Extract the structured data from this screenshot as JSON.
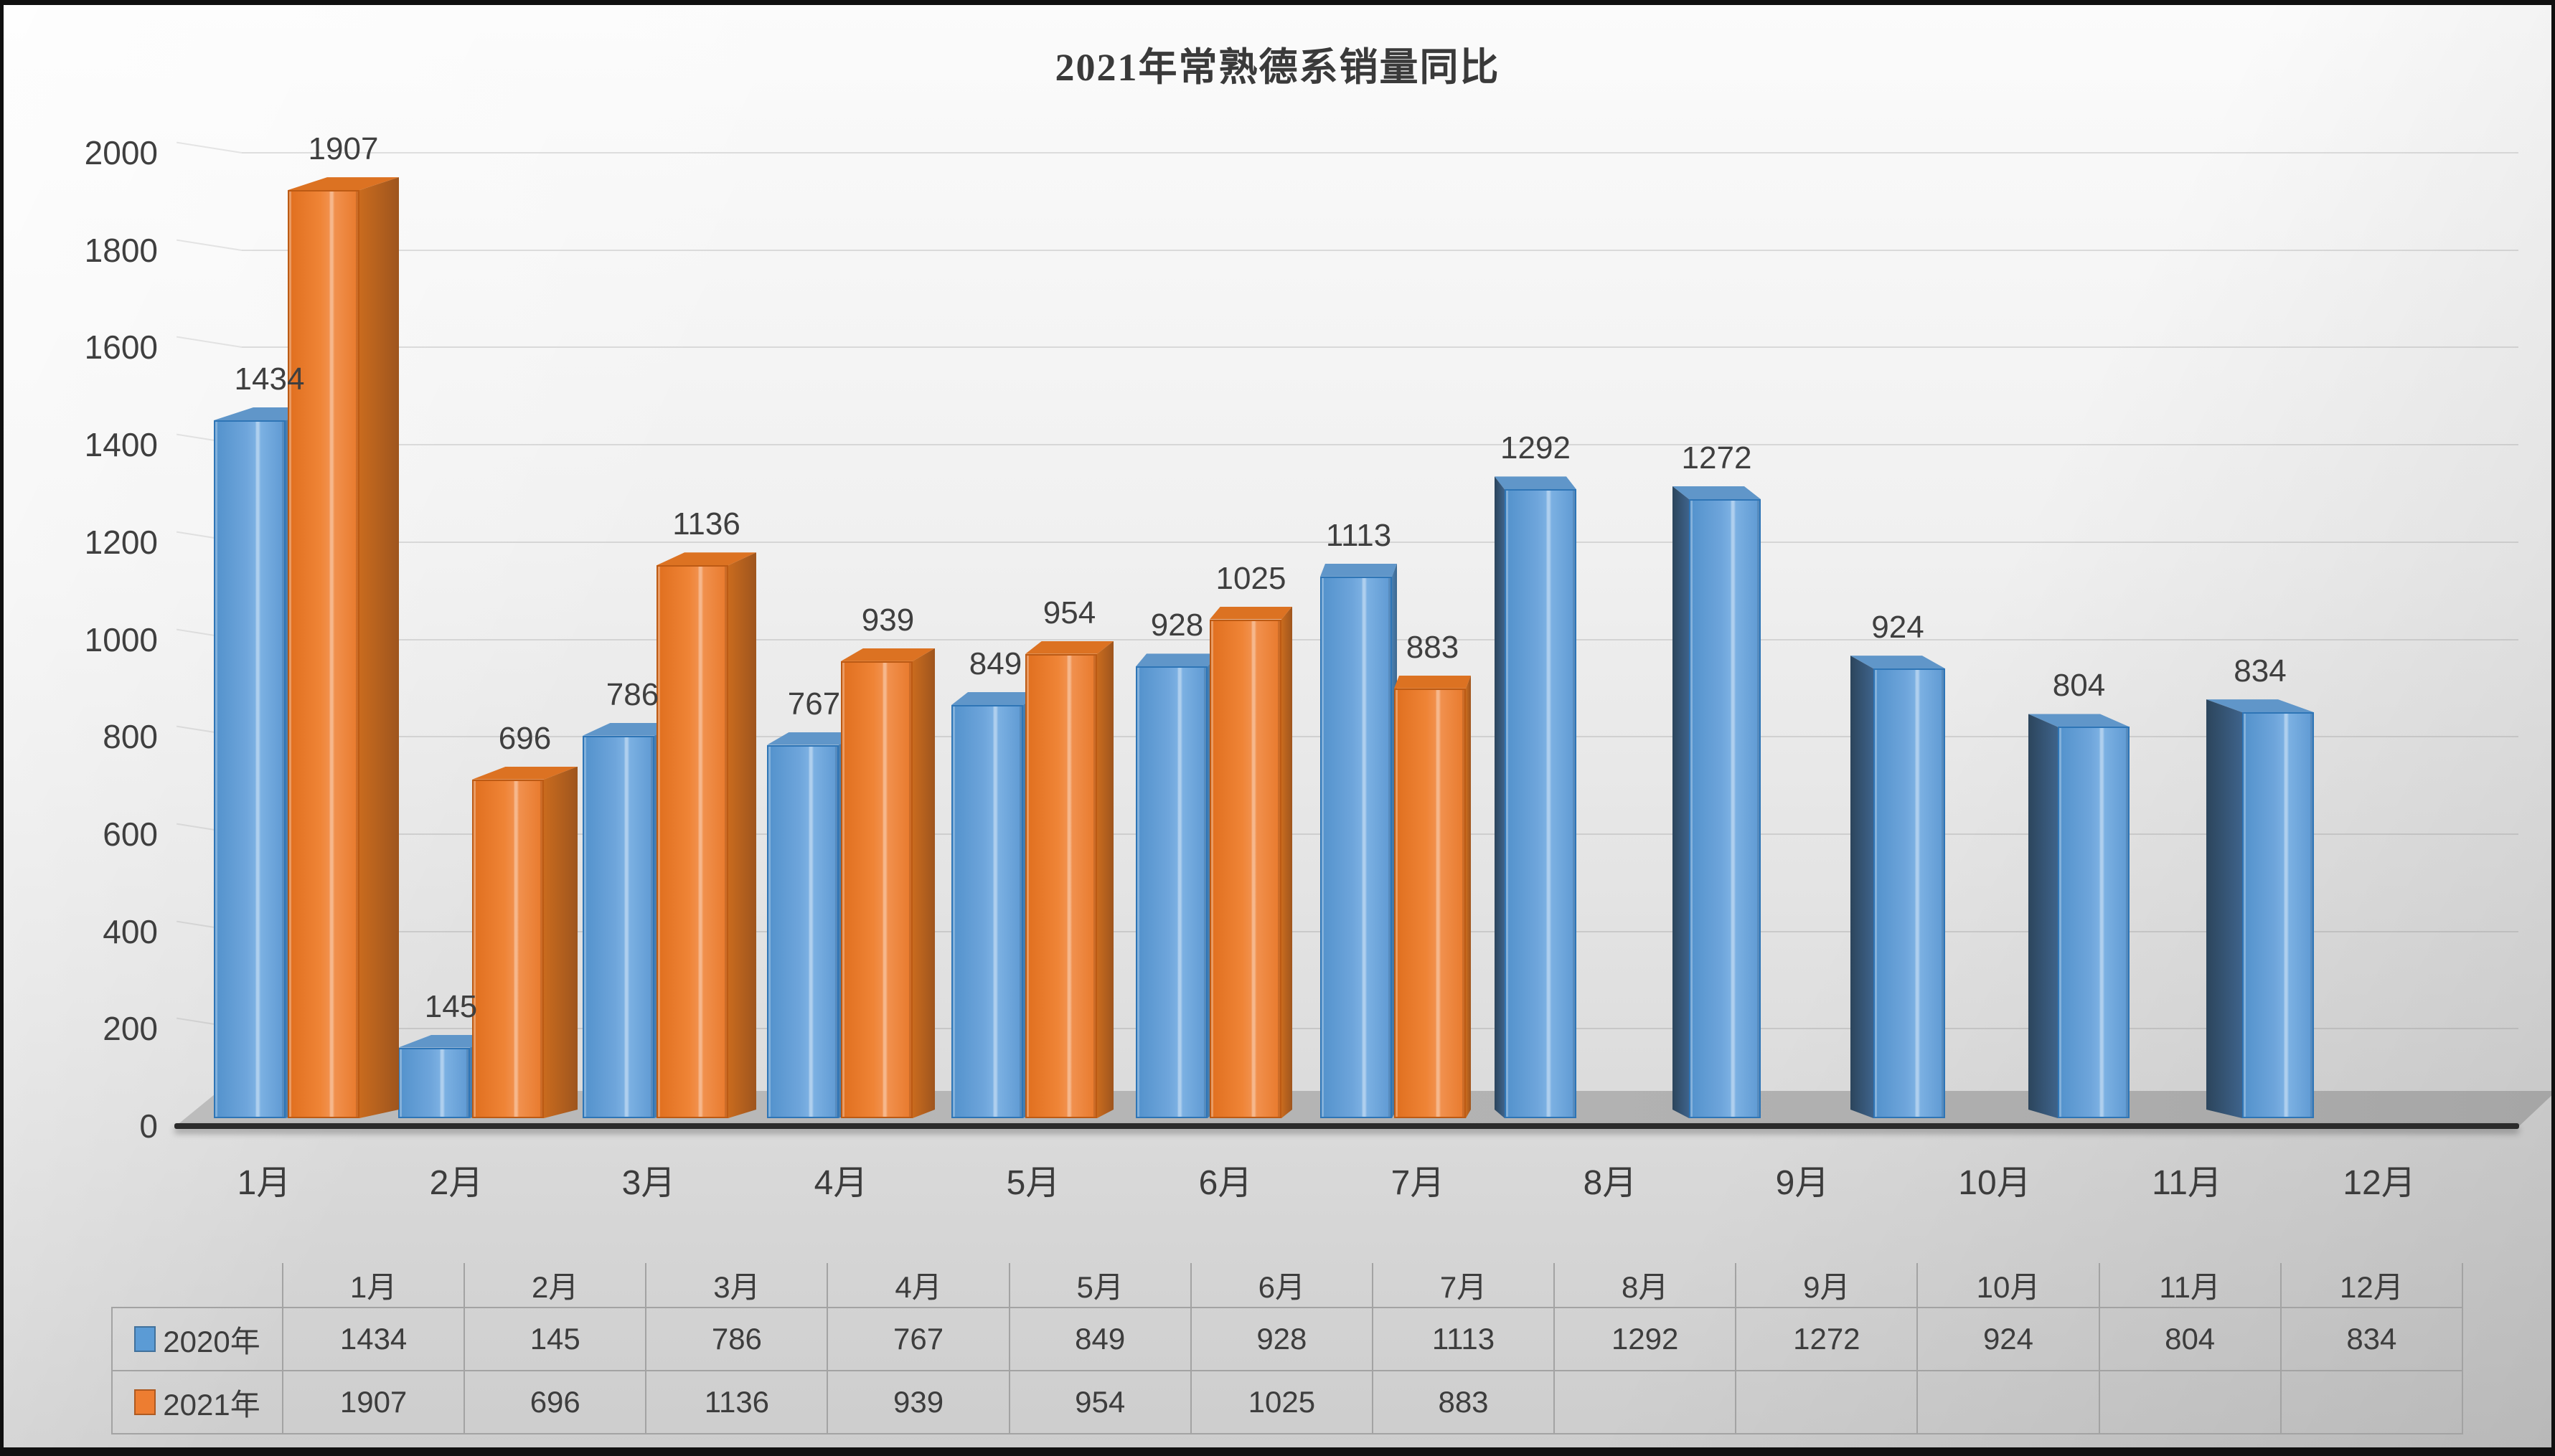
{
  "title": "2021年常熟德系销量同比",
  "chart_data": {
    "type": "bar",
    "subtype": "3d-clustered-column",
    "title": "2021年常熟德系销量同比",
    "categories": [
      "1月",
      "2月",
      "3月",
      "4月",
      "5月",
      "6月",
      "7月",
      "8月",
      "9月",
      "10月",
      "11月",
      "12月"
    ],
    "series": [
      {
        "name": "2020年",
        "color": "#5B9BD5",
        "values": [
          1434,
          145,
          786,
          767,
          849,
          928,
          1113,
          1292,
          1272,
          924,
          804,
          834
        ]
      },
      {
        "name": "2021年",
        "color": "#ED7D31",
        "values": [
          1907,
          696,
          1136,
          939,
          954,
          1025,
          883,
          null,
          null,
          null,
          null,
          null
        ]
      }
    ],
    "y_ticks": [
      0,
      200,
      400,
      600,
      800,
      1000,
      1200,
      1400,
      1600,
      1800,
      2000
    ],
    "ylim": [
      0,
      2000
    ],
    "xlabel": "",
    "ylabel": "",
    "grid": true,
    "data_labels": true,
    "legend_position": "bottom-data-table"
  },
  "data_table": {
    "corner_label": "",
    "column_headers": [
      "1月",
      "2月",
      "3月",
      "4月",
      "5月",
      "6月",
      "7月",
      "8月",
      "9月",
      "10月",
      "11月",
      "12月"
    ],
    "rows": [
      {
        "label": "2020年",
        "swatch_color": "#5B9BD5",
        "swatch_border": "#41719C",
        "values": [
          "1434",
          "145",
          "786",
          "767",
          "849",
          "928",
          "1113",
          "1292",
          "1272",
          "924",
          "804",
          "834"
        ]
      },
      {
        "label": "2021年",
        "swatch_color": "#ED7D31",
        "swatch_border": "#AE5A21",
        "values": [
          "1907",
          "696",
          "1136",
          "939",
          "954",
          "1025",
          "883",
          "",
          "",
          "",
          "",
          ""
        ]
      }
    ]
  },
  "colors": {
    "background_top": "#fbfbfb",
    "background_bottom": "#cdcdcd",
    "series_2020": "#5B9BD5",
    "series_2021": "#ED7D31",
    "axis_line": "#2b2b2b",
    "text": "#3f3f3f",
    "gridline": "#cfcfcf",
    "floor": "#b3b3b3",
    "table_border": "#a3a3a3"
  }
}
